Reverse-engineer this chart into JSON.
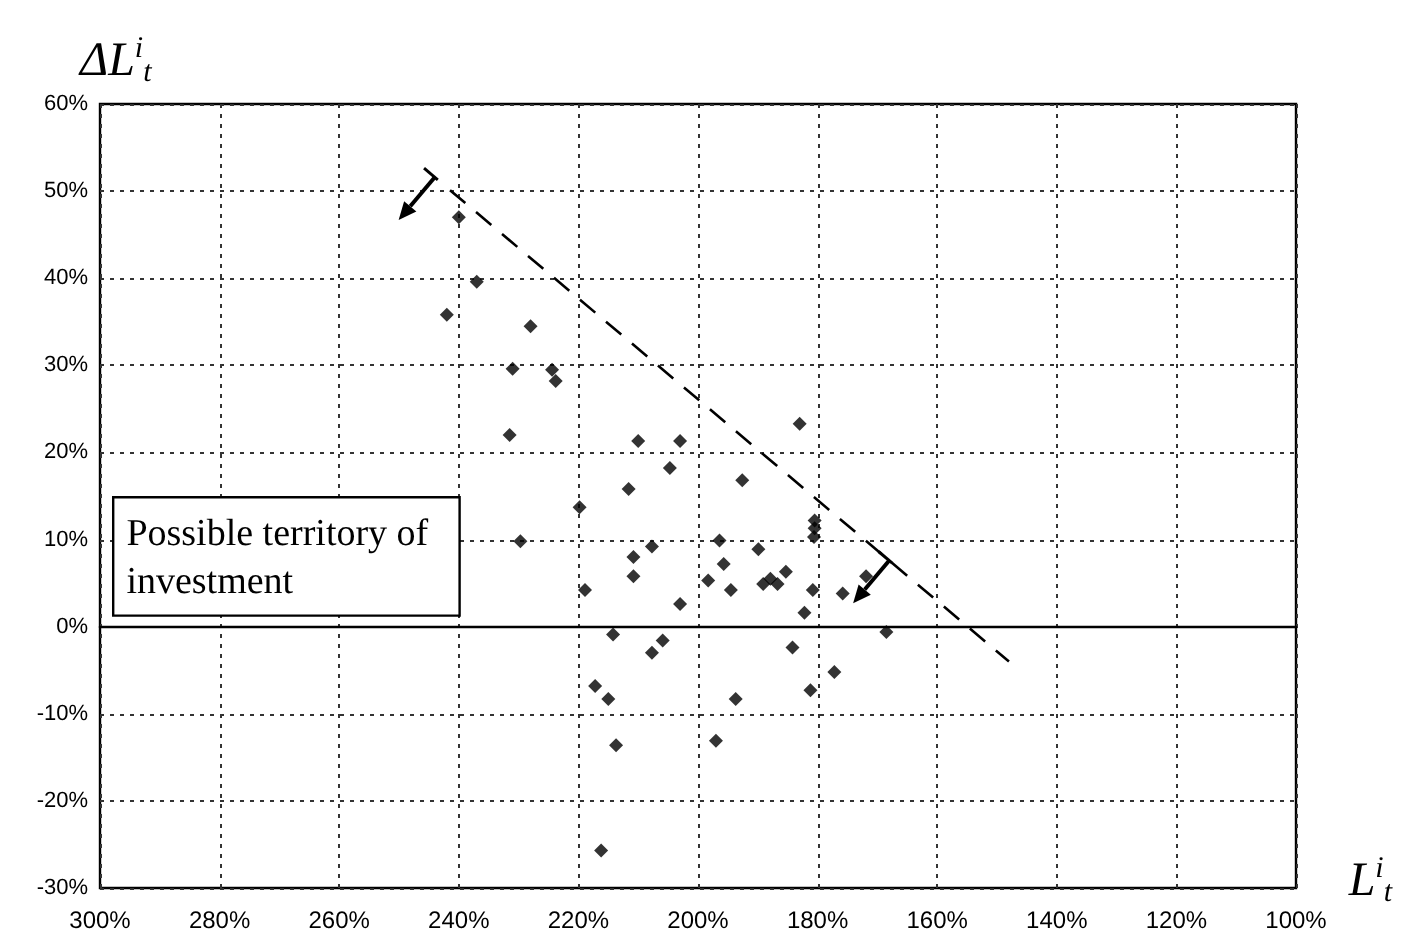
{
  "chart_data": {
    "type": "scatter",
    "ylabel": "ΔL$^{i}$$_{t}$",
    "xlabel": "L$^{i}$$_{t}$",
    "annotations": [
      "Possible territory of investment"
    ],
    "xlim": [
      300,
      100
    ],
    "xticks": [
      {
        "value": 300,
        "label": "300%"
      },
      {
        "value": 280,
        "label": "280%"
      },
      {
        "value": 260,
        "label": "260%"
      },
      {
        "value": 240,
        "label": "240%"
      },
      {
        "value": 220,
        "label": "220%"
      },
      {
        "value": 200,
        "label": "200%"
      },
      {
        "value": 180,
        "label": "180%"
      },
      {
        "value": 160,
        "label": "160%"
      },
      {
        "value": 140,
        "label": "140%"
      },
      {
        "value": 120,
        "label": "120%"
      },
      {
        "value": 100,
        "label": "100%"
      }
    ],
    "ylim": [
      -30,
      60
    ],
    "yticks": [
      {
        "value": -30,
        "label": "-30%"
      },
      {
        "value": -20,
        "label": "-20%"
      },
      {
        "value": -10,
        "label": "-10%"
      },
      {
        "value": 0,
        "label": "0%"
      },
      {
        "value": 10,
        "label": "10%"
      },
      {
        "value": 20,
        "label": "20%"
      },
      {
        "value": 30,
        "label": "30%"
      },
      {
        "value": 40,
        "label": "40%"
      },
      {
        "value": 50,
        "label": "50%"
      },
      {
        "value": 60,
        "label": "60%"
      }
    ],
    "grid": true,
    "marker": "diamond",
    "series": [
      {
        "color": "#000000",
        "x": [
          240,
          237,
          242,
          228,
          231,
          224.4,
          223.8,
          231.5,
          229.7,
          183,
          210,
          203,
          204.7,
          192.6,
          211.6,
          219.8,
          180.5,
          180.5,
          180.6,
          196.4,
          207.7,
          210.8,
          189.9,
          195.7,
          210.8,
          198.3,
          189.1,
          187.9,
          186.7,
          185.3,
          194.5,
          171.9,
          175.8,
          180.8,
          218.9,
          203,
          182.2,
          168.5,
          214.2,
          205.9,
          207.7,
          184.2,
          177.2,
          217.2,
          215,
          181.2,
          193.7,
          213.7,
          197,
          216.2
        ],
        "values": [
          47,
          39.6,
          35.8,
          34.5,
          29.6,
          29.5,
          28.2,
          22,
          9.8,
          23.3,
          21.3,
          21.3,
          18.2,
          16.8,
          15.8,
          13.7,
          12.2,
          11.3,
          10.3,
          9.9,
          9.2,
          8,
          8.9,
          7.2,
          5.8,
          5.3,
          4.9,
          5.5,
          4.9,
          6.3,
          4.2,
          5.8,
          3.8,
          4.2,
          4.2,
          2.6,
          1.6,
          -0.6,
          -0.9,
          -1.6,
          -3,
          -2.4,
          -5.2,
          -6.8,
          -8.3,
          -7.3,
          -8.3,
          -13.6,
          -13.1,
          -25.7
        ]
      },
      {
        "type": "line",
        "line_style": "dashed",
        "marker": "none",
        "color": "#000000",
        "x": [
          243,
          148
        ],
        "values": [
          51,
          -4
        ]
      }
    ]
  }
}
